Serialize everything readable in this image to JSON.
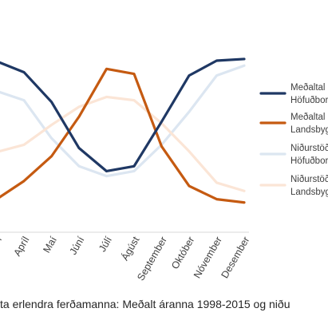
{
  "chart_data": {
    "type": "line",
    "categories": [
      "Apríl",
      "Maí",
      "Júní",
      "Júlí",
      "Ágúst",
      "September",
      "Október",
      "Nóvember",
      "Desember"
    ],
    "visible_first_category_stub": "l",
    "series": [
      {
        "name_lines": [
          "Meðaltal",
          "Höfuðbor"
        ],
        "color": "#1f3864",
        "width": 3.2,
        "values": [
          78,
          60,
          32,
          18,
          21,
          48,
          76,
          85,
          86
        ],
        "left_start": 84
      },
      {
        "name_lines": [
          "Meðaltal",
          "Landsbyg"
        ],
        "color": "#c55a11",
        "width": 3.2,
        "values": [
          12,
          27,
          51,
          80,
          77,
          33,
          9,
          1,
          -1
        ],
        "left_start": 2
      },
      {
        "name_lines": [
          "Niðurstöð",
          "Höfuðbor"
        ],
        "color": "#dce6f1",
        "width": 3.2,
        "values": [
          61,
          38,
          21,
          15,
          18,
          34,
          54,
          76,
          82
        ],
        "left_start": 66
      },
      {
        "name_lines": [
          "Niðurstöð",
          "Landsbyg"
        ],
        "color": "#fbe5d6",
        "width": 3.2,
        "values": [
          34,
          46,
          57,
          63,
          61,
          47,
          30,
          11,
          6
        ],
        "left_start": 30
      }
    ],
    "ylim": [
      -5,
      100
    ],
    "xlabel": "",
    "ylabel": "",
    "grid": false,
    "legend_position": "right"
  },
  "caption": "ta erlendra ferðamanna: Meðalt áranna 1998-2015 og niðu"
}
